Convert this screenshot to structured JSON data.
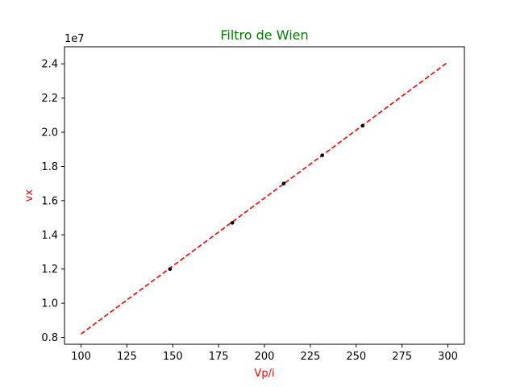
{
  "chart_data": {
    "type": "scatter",
    "title": "Filtro de Wien",
    "xlabel": "Vp/i",
    "ylabel": "vx",
    "y_offset_label": "1e7",
    "y_scale_factor": 10000000,
    "xlim": [
      91,
      309
    ],
    "ylim": [
      7.6,
      25.0
    ],
    "x_ticks": [
      100,
      125,
      150,
      175,
      200,
      225,
      250,
      275,
      300
    ],
    "y_ticks": [
      0.8,
      1.0,
      1.2,
      1.4,
      1.6,
      1.8,
      2.0,
      2.2,
      2.4
    ],
    "grid": false,
    "series": [
      {
        "kind": "points",
        "color": "#000000",
        "x": [
          148.5,
          182.5,
          210.5,
          231.5,
          253.5
        ],
        "y": [
          12.0,
          14.7,
          17.0,
          18.65,
          20.38
        ]
      },
      {
        "kind": "fit-line",
        "style": "dashed",
        "color": "#ff0000",
        "x": [
          100,
          300
        ],
        "y": [
          8.2,
          24.1
        ]
      }
    ],
    "colors": {
      "title": "#008000",
      "axis_labels": "#ff0000"
    }
  }
}
